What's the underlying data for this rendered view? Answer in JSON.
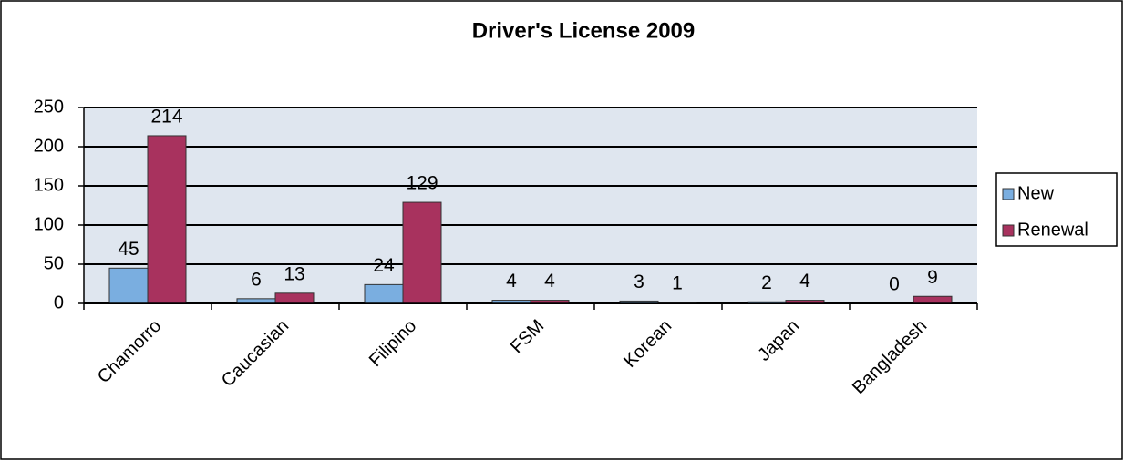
{
  "chart_data": {
    "type": "bar",
    "title": "Driver's License 2009",
    "categories": [
      "Chamorro",
      "Caucasian",
      "Filipino",
      "FSM",
      "Korean",
      "Japan",
      "Bangladesh"
    ],
    "series": [
      {
        "name": "New",
        "color": "#7aaee0",
        "values": [
          45,
          6,
          24,
          4,
          3,
          2,
          0
        ]
      },
      {
        "name": "Renewal",
        "color": "#a8325e",
        "values": [
          214,
          13,
          129,
          4,
          1,
          4,
          9
        ]
      }
    ],
    "ylim": [
      0,
      250
    ],
    "yticks": [
      0,
      50,
      100,
      150,
      200,
      250
    ],
    "grid": true,
    "legend": "right"
  }
}
